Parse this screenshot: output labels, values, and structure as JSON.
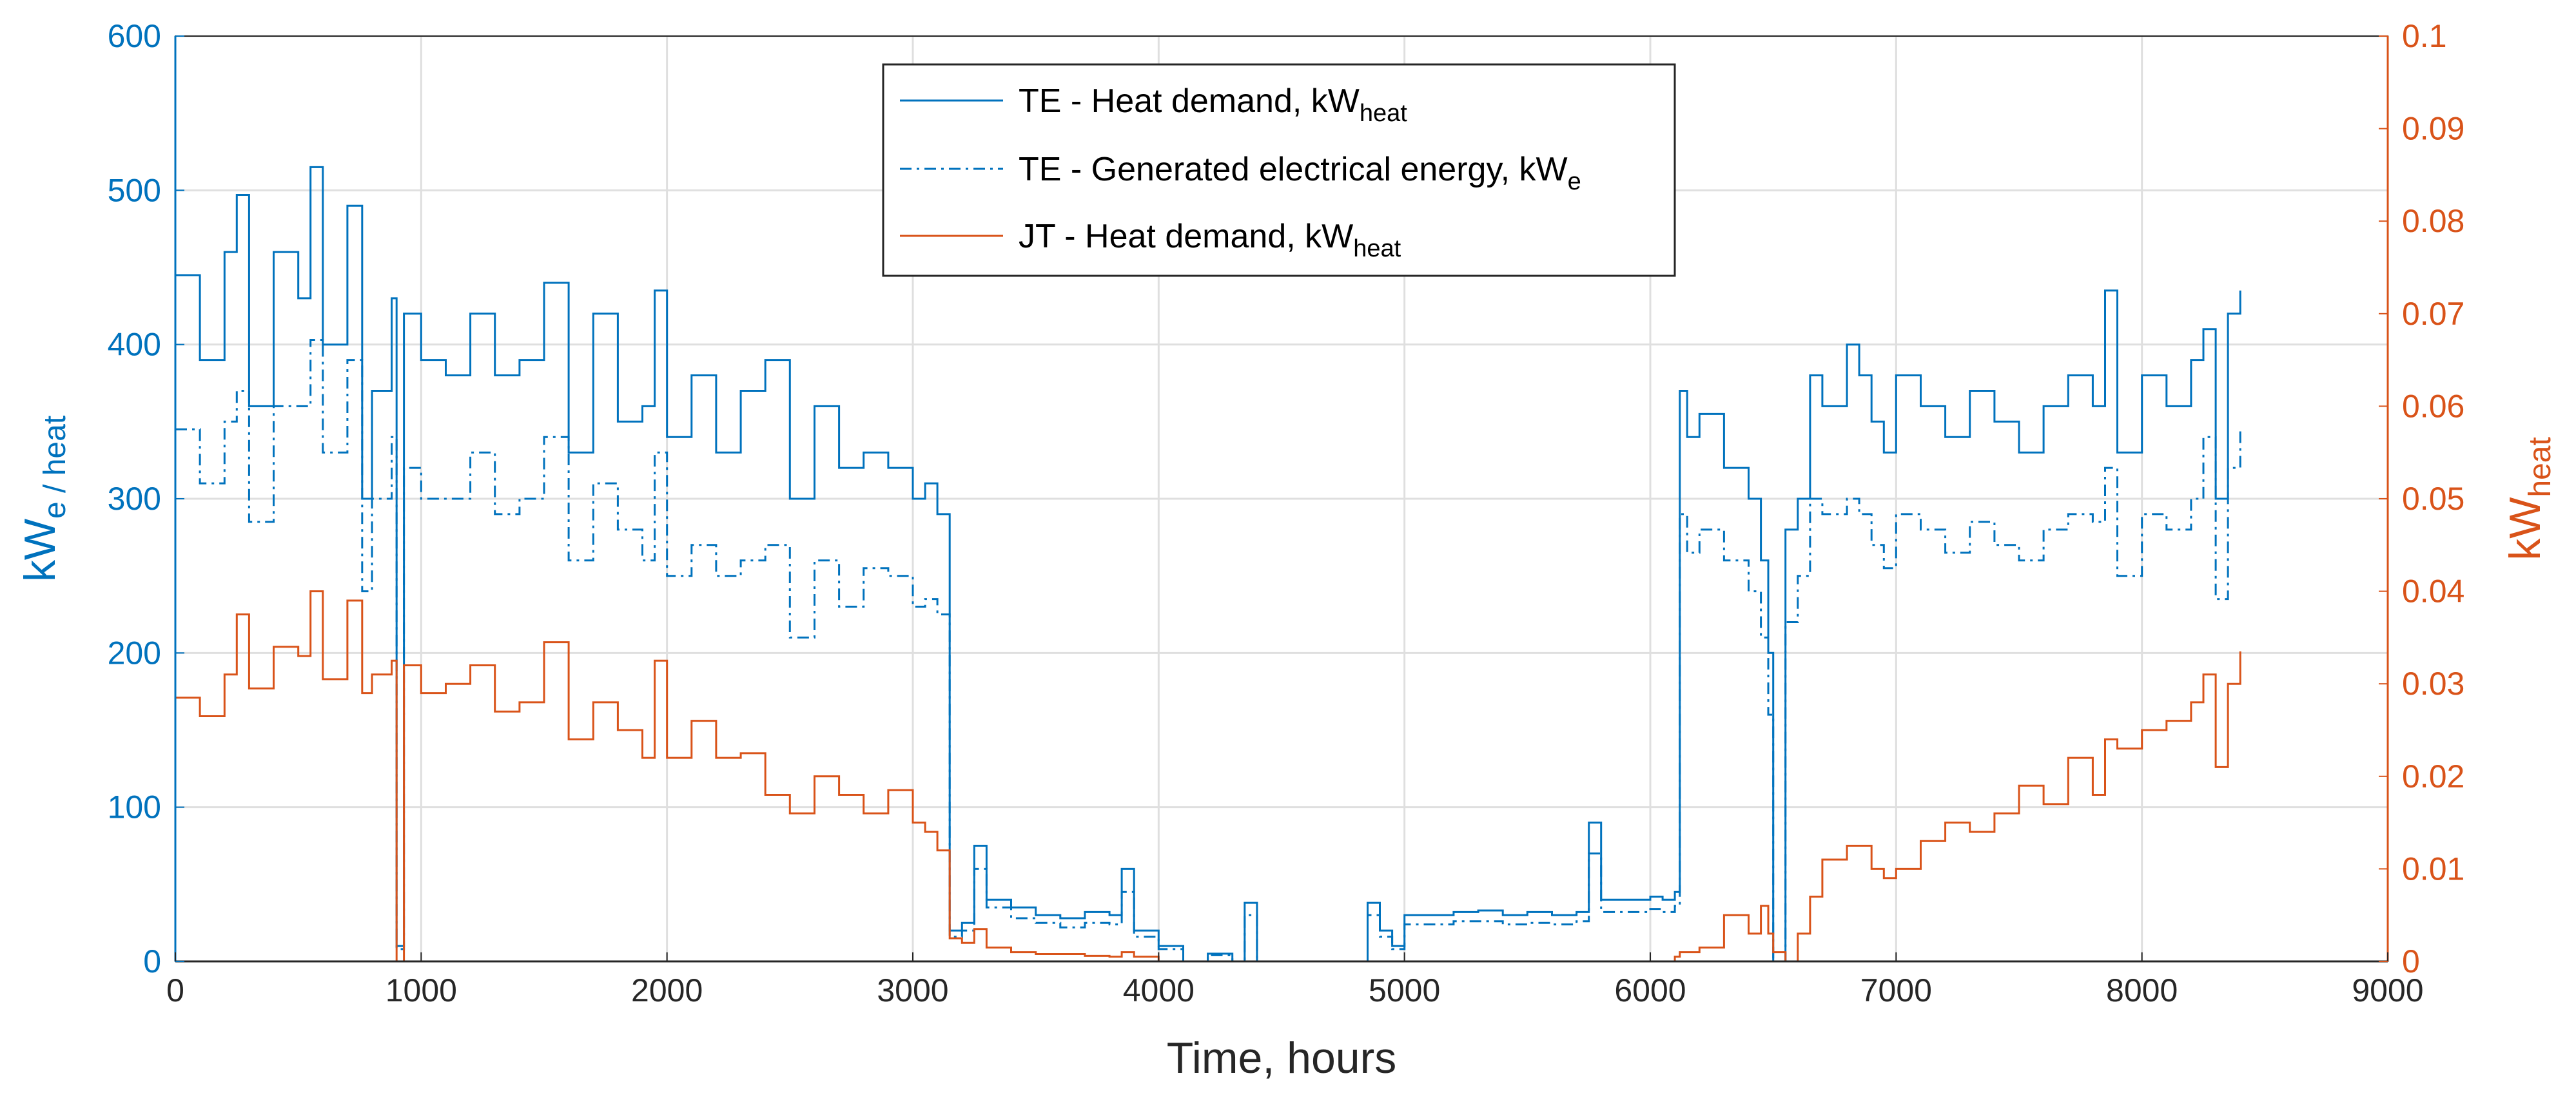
{
  "chart_data": {
    "type": "line",
    "xlabel": "Time, hours",
    "ylabel_left": {
      "base": "kW",
      "sub": "e / heat"
    },
    "ylabel_right": {
      "base": "kW",
      "sub": "heat"
    },
    "xlim": [
      0,
      9000
    ],
    "ylim_left": [
      0,
      600
    ],
    "ylim_right": [
      0,
      0.1
    ],
    "x_ticks": [
      "0",
      "1000",
      "2000",
      "3000",
      "4000",
      "5000",
      "6000",
      "7000",
      "8000",
      "9000"
    ],
    "y_left_ticks": [
      "0",
      "100",
      "200",
      "300",
      "400",
      "500",
      "600"
    ],
    "y_right_ticks": [
      "0",
      "0.01",
      "0.02",
      "0.03",
      "0.04",
      "0.05",
      "0.06",
      "0.07",
      "0.08",
      "0.09",
      "0.1"
    ],
    "grid": true,
    "legend_position": "top-center",
    "colors": {
      "left_axis": "#0072BD",
      "right_axis": "#D95319",
      "grid": "#DFDFDF"
    },
    "series": [
      {
        "name": "TE - Heat demand, kW_heat",
        "legend": {
          "main": "TE - Heat demand, kW",
          "sub": "heat"
        },
        "axis": "left",
        "color": "#0072BD",
        "dash": "solid",
        "x": [
          0,
          100,
          200,
          250,
          300,
          400,
          500,
          550,
          600,
          700,
          760,
          800,
          880,
          900,
          930,
          1000,
          1100,
          1200,
          1300,
          1400,
          1500,
          1600,
          1700,
          1800,
          1900,
          1950,
          2000,
          2100,
          2200,
          2300,
          2400,
          2500,
          2600,
          2700,
          2800,
          2900,
          3000,
          3050,
          3100,
          3150,
          3200,
          3250,
          3300,
          3400,
          3500,
          3600,
          3700,
          3800,
          3850,
          3900,
          4000,
          4100,
          4200,
          4300,
          4350,
          4400,
          4600,
          4800,
          4850,
          4900,
          4950,
          5000,
          5100,
          5200,
          5300,
          5400,
          5500,
          5600,
          5700,
          5750,
          5800,
          5900,
          6000,
          6050,
          6100,
          6120,
          6150,
          6200,
          6300,
          6400,
          6450,
          6480,
          6500,
          6550,
          6600,
          6650,
          6700,
          6800,
          6850,
          6900,
          6950,
          7000,
          7100,
          7200,
          7300,
          7400,
          7500,
          7600,
          7700,
          7800,
          7850,
          7900,
          8000,
          8100,
          8200,
          8250,
          8300,
          8350,
          8400
        ],
        "y": [
          445,
          390,
          460,
          497,
          360,
          460,
          430,
          515,
          400,
          490,
          300,
          370,
          430,
          10,
          420,
          390,
          380,
          420,
          380,
          390,
          440,
          330,
          420,
          350,
          360,
          435,
          340,
          380,
          330,
          370,
          390,
          300,
          360,
          320,
          330,
          320,
          300,
          310,
          290,
          20,
          25,
          75,
          40,
          35,
          30,
          28,
          32,
          30,
          60,
          20,
          10,
          0,
          5,
          0,
          38,
          0,
          0,
          0,
          38,
          20,
          10,
          30,
          30,
          32,
          33,
          30,
          32,
          30,
          32,
          90,
          40,
          40,
          42,
          40,
          45,
          370,
          340,
          355,
          320,
          300,
          260,
          200,
          0,
          280,
          300,
          380,
          360,
          400,
          380,
          350,
          330,
          380,
          360,
          340,
          370,
          350,
          330,
          360,
          380,
          360,
          435,
          330,
          380,
          360,
          390,
          410,
          300,
          420,
          435
        ]
      },
      {
        "name": "TE - Generated electrical energy, kW_e",
        "legend": {
          "main": "TE - Generated electrical energy, kW",
          "sub": "e"
        },
        "axis": "left",
        "color": "#0072BD",
        "dash": "dashdot",
        "x": [
          0,
          100,
          200,
          250,
          300,
          400,
          500,
          550,
          600,
          700,
          760,
          800,
          880,
          900,
          930,
          1000,
          1100,
          1200,
          1300,
          1400,
          1500,
          1600,
          1700,
          1800,
          1900,
          1950,
          2000,
          2100,
          2200,
          2300,
          2400,
          2500,
          2600,
          2700,
          2800,
          2900,
          3000,
          3050,
          3100,
          3150,
          3200,
          3250,
          3300,
          3400,
          3500,
          3600,
          3700,
          3800,
          3850,
          3900,
          4000,
          4100,
          4200,
          4300,
          4350,
          4400,
          4600,
          4800,
          4850,
          4900,
          4950,
          5000,
          5100,
          5200,
          5300,
          5400,
          5500,
          5600,
          5700,
          5750,
          5800,
          5900,
          6000,
          6050,
          6100,
          6120,
          6150,
          6200,
          6300,
          6400,
          6450,
          6480,
          6500,
          6550,
          6600,
          6650,
          6700,
          6800,
          6850,
          6900,
          6950,
          7000,
          7100,
          7200,
          7300,
          7400,
          7500,
          7600,
          7700,
          7800,
          7850,
          7900,
          8000,
          8100,
          8200,
          8250,
          8300,
          8350,
          8400
        ],
        "y": [
          345,
          310,
          350,
          370,
          285,
          360,
          360,
          403,
          330,
          390,
          240,
          300,
          340,
          8,
          320,
          300,
          300,
          330,
          290,
          300,
          340,
          260,
          310,
          280,
          260,
          330,
          250,
          270,
          250,
          260,
          270,
          210,
          260,
          230,
          255,
          250,
          230,
          235,
          225,
          16,
          20,
          60,
          35,
          28,
          25,
          22,
          25,
          24,
          45,
          16,
          8,
          0,
          4,
          0,
          30,
          0,
          0,
          0,
          30,
          16,
          8,
          24,
          24,
          26,
          26,
          24,
          25,
          24,
          26,
          70,
          32,
          32,
          34,
          32,
          36,
          290,
          265,
          280,
          260,
          240,
          210,
          160,
          0,
          220,
          250,
          300,
          290,
          300,
          290,
          270,
          255,
          290,
          280,
          265,
          285,
          270,
          260,
          280,
          290,
          285,
          320,
          250,
          290,
          280,
          300,
          340,
          235,
          320,
          345
        ]
      },
      {
        "name": "JT - Heat demand, kW_heat",
        "legend": {
          "main": "JT - Heat demand, kW",
          "sub": "heat"
        },
        "axis": "right",
        "color": "#D95319",
        "dash": "solid",
        "x": [
          0,
          100,
          200,
          250,
          300,
          400,
          500,
          550,
          600,
          700,
          760,
          800,
          880,
          900,
          930,
          1000,
          1100,
          1200,
          1300,
          1400,
          1500,
          1600,
          1700,
          1800,
          1900,
          1950,
          2000,
          2100,
          2200,
          2300,
          2400,
          2500,
          2600,
          2700,
          2800,
          2900,
          3000,
          3050,
          3100,
          3150,
          3200,
          3250,
          3300,
          3400,
          3500,
          3600,
          3700,
          3800,
          3850,
          3900,
          4000,
          4100,
          4200,
          4300,
          4350,
          4400,
          4600,
          4800,
          4850,
          4900,
          4950,
          5000,
          5100,
          5200,
          5300,
          5400,
          5500,
          5600,
          5700,
          5750,
          5800,
          5900,
          6000,
          6050,
          6100,
          6120,
          6150,
          6200,
          6300,
          6400,
          6450,
          6480,
          6500,
          6550,
          6600,
          6650,
          6700,
          6800,
          6850,
          6900,
          6950,
          7000,
          7100,
          7200,
          7300,
          7400,
          7500,
          7600,
          7700,
          7800,
          7850,
          7900,
          8000,
          8100,
          8200,
          8250,
          8300,
          8350,
          8400
        ],
        "y": [
          0.0285,
          0.0265,
          0.031,
          0.0375,
          0.0295,
          0.034,
          0.033,
          0.04,
          0.0305,
          0.039,
          0.029,
          0.031,
          0.0325,
          0.0,
          0.032,
          0.029,
          0.03,
          0.032,
          0.027,
          0.028,
          0.0345,
          0.024,
          0.028,
          0.025,
          0.022,
          0.0325,
          0.022,
          0.026,
          0.022,
          0.0225,
          0.018,
          0.016,
          0.02,
          0.018,
          0.016,
          0.0185,
          0.015,
          0.014,
          0.012,
          0.0025,
          0.002,
          0.0035,
          0.0015,
          0.001,
          0.0008,
          0.0008,
          0.0006,
          0.0005,
          0.001,
          0.0005,
          0.0,
          0.0,
          0.0,
          0.0,
          0.0,
          0.0,
          0.0,
          0.0,
          0.0,
          0.0,
          0.0,
          0.0,
          0.0,
          0.0,
          0.0,
          0.0,
          0.0,
          0.0,
          0.0,
          0.0,
          0.0,
          0.0,
          0.0,
          0.0,
          0.0005,
          0.001,
          0.001,
          0.0015,
          0.005,
          0.003,
          0.006,
          0.003,
          0.001,
          0.0,
          0.003,
          0.007,
          0.011,
          0.0125,
          0.0125,
          0.01,
          0.009,
          0.01,
          0.013,
          0.015,
          0.014,
          0.016,
          0.019,
          0.017,
          0.022,
          0.018,
          0.024,
          0.023,
          0.025,
          0.026,
          0.028,
          0.031,
          0.021,
          0.03,
          0.0335
        ]
      }
    ]
  }
}
